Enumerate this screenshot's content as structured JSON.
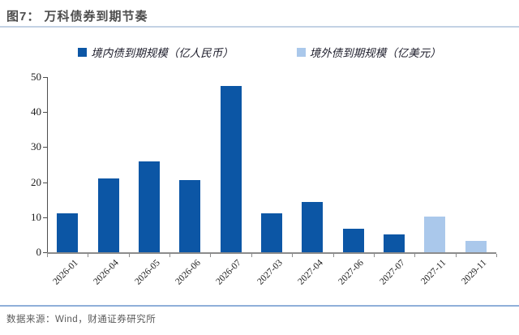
{
  "figure": {
    "title": "图7：  万科债券到期节奏",
    "source": "数据来源：Wind，财通证券研究所"
  },
  "legend": {
    "items": [
      {
        "label": "境内债到期规模（亿人民币）",
        "color": "#0c56a5"
      },
      {
        "label": "境外债到期规模（亿美元）",
        "color": "#aac8eb"
      }
    ]
  },
  "colors": {
    "domestic_bar": "#0c56a5",
    "overseas_bar": "#aac8eb",
    "title_text": "#4d4d4d",
    "header_rule": "#c3d2e4",
    "footer_rule": "#8fafd9"
  },
  "chart_data": {
    "type": "bar",
    "title": "万科债券到期节奏",
    "xlabel": "",
    "ylabel": "",
    "categories": [
      "2026-01",
      "2026-04",
      "2026-05",
      "2026-06",
      "2026-07",
      "2027-03",
      "2027-04",
      "2027-06",
      "2027-07",
      "2027-11",
      "2029-11"
    ],
    "series": [
      {
        "name": "境内债到期规模（亿人民币）",
        "color": "#0c56a5",
        "values": [
          11.2,
          21.0,
          26.0,
          20.5,
          47.5,
          11.2,
          14.4,
          6.8,
          5.2,
          null,
          null
        ]
      },
      {
        "name": "境外债到期规模（亿美元）",
        "color": "#aac8eb",
        "values": [
          null,
          null,
          null,
          null,
          null,
          null,
          null,
          null,
          null,
          10.2,
          3.3
        ]
      }
    ],
    "ylim": [
      0,
      50
    ],
    "yticks": [
      0,
      10,
      20,
      30,
      40,
      50
    ],
    "grid": false,
    "legend_position": "top",
    "x_tick_label_rotation": 45
  }
}
